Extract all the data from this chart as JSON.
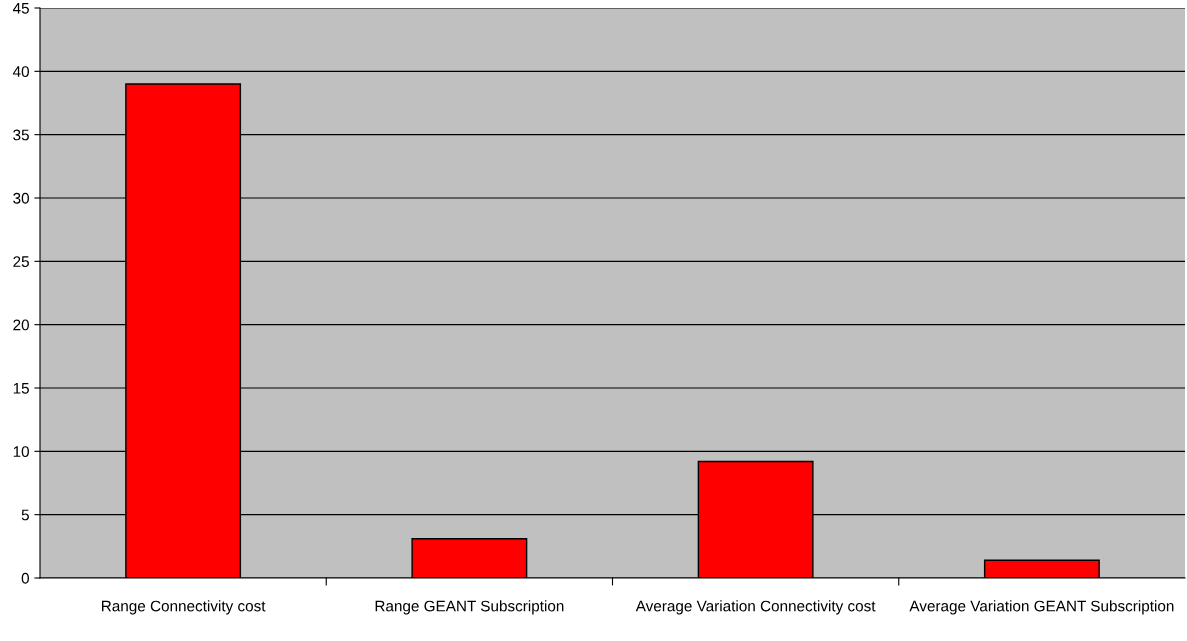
{
  "chart_data": {
    "type": "bar",
    "categories": [
      "Range Connectivity cost",
      "Range GEANT Subscription",
      "Average Variation Connectivity cost",
      "Average Variation GEANT Subscription"
    ],
    "values": [
      39,
      3.1,
      9.2,
      1.4
    ],
    "color": "#ff0000",
    "ylim": [
      0,
      45
    ],
    "yticks": [
      0,
      5,
      10,
      15,
      20,
      25,
      30,
      35,
      40,
      45
    ],
    "grid": "y",
    "legend": false
  }
}
